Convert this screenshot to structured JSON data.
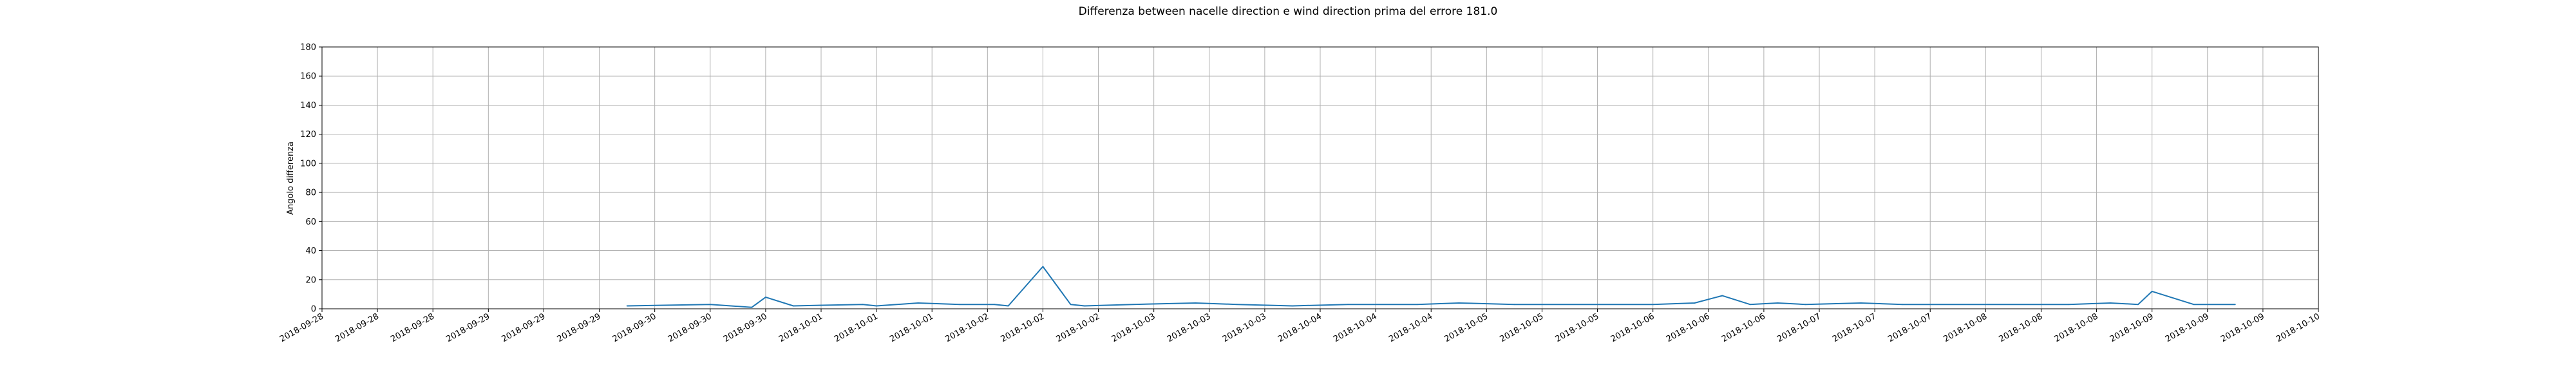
{
  "chart_data": {
    "type": "line",
    "title": "Differenza between nacelle direction e wind direction prima del errore 181.0",
    "xlabel": "",
    "ylabel": "Angolo differenza",
    "ylim": [
      0,
      180
    ],
    "yticks": [
      0,
      20,
      40,
      60,
      80,
      100,
      120,
      140,
      160,
      180
    ],
    "xlim": [
      "2018-09-28 00:00",
      "2018-10-10 00:00"
    ],
    "x_tick_labels": [
      "2018-09-28",
      "2018-09-28",
      "2018-09-28",
      "2018-09-29",
      "2018-09-29",
      "2018-09-29",
      "2018-09-30",
      "2018-09-30",
      "2018-09-30",
      "2018-10-01",
      "2018-10-01",
      "2018-10-01",
      "2018-10-02",
      "2018-10-02",
      "2018-10-02",
      "2018-10-03",
      "2018-10-03",
      "2018-10-03",
      "2018-10-04",
      "2018-10-04",
      "2018-10-04",
      "2018-10-05",
      "2018-10-05",
      "2018-10-05",
      "2018-10-06",
      "2018-10-06",
      "2018-10-06",
      "2018-10-07",
      "2018-10-07",
      "2018-10-07",
      "2018-10-08",
      "2018-10-08",
      "2018-10-08",
      "2018-10-09",
      "2018-10-09",
      "2018-10-09",
      "2018-10-10"
    ],
    "grid": true,
    "color": "#1f77b4",
    "series": [
      {
        "name": "",
        "x": [
          "2018-09-29 20:00",
          "2018-09-30 08:00",
          "2018-09-30 14:00",
          "2018-09-30 16:00",
          "2018-09-30 20:00",
          "2018-10-01 06:00",
          "2018-10-01 08:00",
          "2018-10-01 14:00",
          "2018-10-01 20:00",
          "2018-10-02 01:00",
          "2018-10-02 03:00",
          "2018-10-02 08:00",
          "2018-10-02 12:00",
          "2018-10-02 14:00",
          "2018-10-02 21:00",
          "2018-10-03 06:00",
          "2018-10-03 12:00",
          "2018-10-03 20:00",
          "2018-10-04 04:00",
          "2018-10-04 14:00",
          "2018-10-04 20:00",
          "2018-10-05 04:00",
          "2018-10-05 16:00",
          "2018-10-06 00:00",
          "2018-10-06 06:00",
          "2018-10-06 10:00",
          "2018-10-06 14:00",
          "2018-10-06 18:00",
          "2018-10-06 22:00",
          "2018-10-07 06:00",
          "2018-10-07 12:00",
          "2018-10-08 12:00",
          "2018-10-08 18:00",
          "2018-10-08 22:00",
          "2018-10-09 00:00",
          "2018-10-09 06:00",
          "2018-10-09 12:00"
        ],
        "y": [
          2,
          3,
          1,
          8,
          2,
          3,
          2,
          4,
          3,
          3,
          2,
          29,
          3,
          2,
          3,
          4,
          3,
          2,
          3,
          3,
          4,
          3,
          3,
          3,
          4,
          9,
          3,
          4,
          3,
          4,
          3,
          3,
          4,
          3,
          12,
          3,
          3
        ]
      }
    ]
  }
}
